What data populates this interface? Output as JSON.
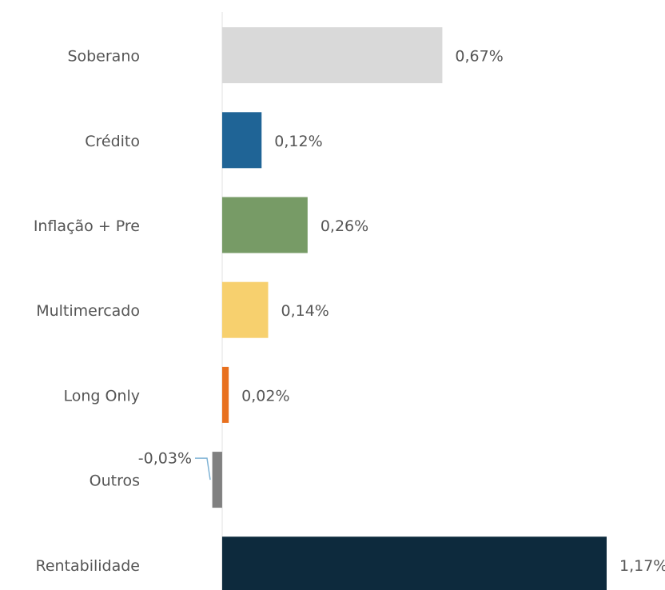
{
  "chart_data": {
    "type": "bar",
    "orientation": "horizontal",
    "categories": [
      "Soberano",
      "Crédito",
      "Inflação + Pre",
      "Multimercado",
      "Long Only",
      "Outros",
      "Rentabilidade"
    ],
    "values": [
      0.67,
      0.12,
      0.26,
      0.14,
      0.02,
      -0.03,
      1.17
    ],
    "value_labels": [
      "0,67%",
      "0,12%",
      "0,26%",
      "0,14%",
      "0,02%",
      "-0,03%",
      "1,17%"
    ],
    "colors": [
      "#d9d9d9",
      "#1f6496",
      "#779b66",
      "#f7d06e",
      "#e8701e",
      "#808080",
      "#0d2a3d"
    ],
    "xlim": [
      -0.03,
      1.26
    ]
  }
}
